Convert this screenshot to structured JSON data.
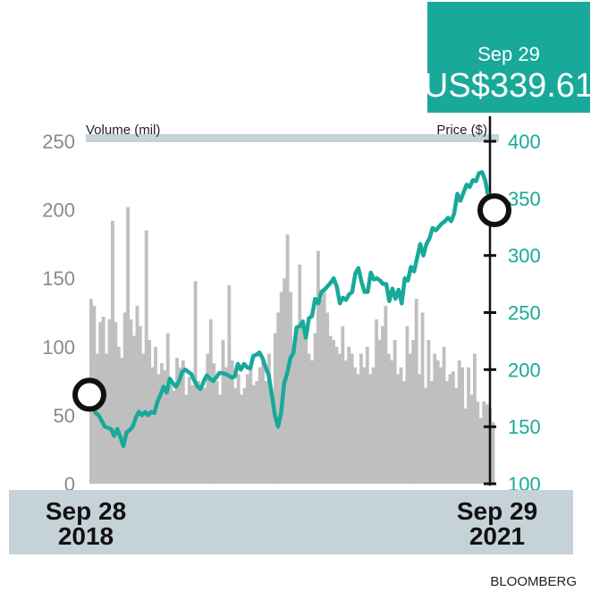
{
  "chart_data": {
    "type": "bar+line",
    "badge": {
      "date": "Sep 29",
      "price": "US$339.61"
    },
    "volume_axis": {
      "label": "Volume (mil)",
      "ticks": [
        0,
        50,
        100,
        150,
        200,
        250
      ],
      "range": [
        0,
        250
      ]
    },
    "price_axis": {
      "label": "Price ($)",
      "ticks": [
        100,
        150,
        200,
        250,
        300,
        350,
        400
      ],
      "range": [
        100,
        400
      ]
    },
    "x_labels": {
      "start": {
        "line1": "Sep 28",
        "line2": "2018"
      },
      "end": {
        "line1": "Sep 29",
        "line2": "2021"
      }
    },
    "start_price": 178,
    "end_price": 339.61,
    "price_series": [
      178,
      170,
      162,
      160,
      155,
      150,
      149,
      148,
      142,
      148,
      141,
      133,
      145,
      147,
      150,
      158,
      163,
      160,
      163,
      160,
      163,
      162,
      172,
      178,
      185,
      180,
      192,
      188,
      185,
      190,
      198,
      200,
      198,
      196,
      190,
      185,
      183,
      190,
      195,
      192,
      190,
      193,
      197,
      197,
      196,
      195,
      193,
      194,
      205,
      200,
      205,
      202,
      201,
      212,
      213,
      215,
      210,
      202,
      195,
      178,
      160,
      150,
      162,
      188,
      197,
      210,
      215,
      237,
      238,
      242,
      228,
      245,
      247,
      262,
      258,
      268,
      270,
      273,
      276,
      280,
      273,
      258,
      263,
      261,
      266,
      268,
      284,
      289,
      277,
      268,
      268,
      285,
      279,
      280,
      278,
      275,
      275,
      260,
      271,
      262,
      270,
      258,
      280,
      278,
      290,
      286,
      298,
      310,
      300,
      310,
      315,
      324,
      322,
      325,
      328,
      330,
      333,
      330,
      337,
      354,
      348,
      355,
      362,
      360,
      366,
      365,
      372,
      373,
      366,
      352,
      345,
      339.61
    ],
    "volume_series": [
      135,
      130,
      95,
      118,
      122,
      95,
      120,
      192,
      118,
      100,
      92,
      125,
      202,
      120,
      108,
      130,
      115,
      95,
      185,
      105,
      85,
      100,
      80,
      88,
      83,
      110,
      72,
      68,
      92,
      85,
      90,
      65,
      78,
      72,
      148,
      75,
      68,
      70,
      95,
      120,
      88,
      75,
      65,
      105,
      85,
      145,
      90,
      70,
      80,
      65,
      70,
      80,
      86,
      72,
      75,
      85,
      90,
      75,
      95,
      60,
      110,
      125,
      140,
      150,
      182,
      140,
      100,
      115,
      160,
      120,
      115,
      95,
      90,
      110,
      170,
      135,
      140,
      125,
      108,
      105,
      100,
      95,
      115,
      90,
      100,
      95,
      85,
      80,
      95,
      85,
      100,
      80,
      85,
      120,
      105,
      115,
      130,
      95,
      90,
      105,
      80,
      85,
      75,
      115,
      95,
      105,
      135,
      80,
      125,
      70,
      105,
      75,
      95,
      90,
      85,
      100,
      75,
      80,
      82,
      70,
      90,
      85,
      55,
      85,
      65,
      95,
      60,
      48,
      60,
      58,
      55,
      45
    ],
    "colors": {
      "price_line": "#18a99a",
      "volume_bars": "#bfbfbf",
      "band": "#c5d2d8",
      "badge": "#18a99a",
      "axis": "#111111"
    },
    "source": "BLOOMBERG"
  }
}
